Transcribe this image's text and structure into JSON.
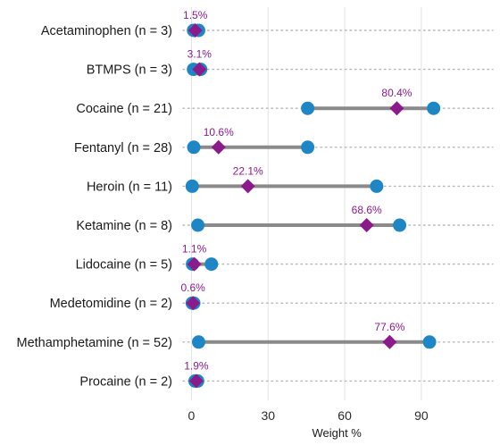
{
  "chart_data": {
    "type": "dumbbell",
    "xlabel": "Weight %",
    "xlim": [
      -4,
      118
    ],
    "xticks": [
      0,
      30,
      60,
      90
    ],
    "grid": true,
    "colors": {
      "range_point": "#1f86c6",
      "median_marker": "#8b1a8b",
      "range_line": "#8a8a8a",
      "gridline": "#e3e3e3",
      "row_dots": "#b5b5b5"
    },
    "rows": [
      {
        "label": "Acetaminophen (n = 3)",
        "min": 0.8,
        "max": 2.8,
        "median": 1.5,
        "median_label": "1.5%"
      },
      {
        "label": "BTMPS (n = 3)",
        "min": 0.8,
        "max": 3.6,
        "median": 3.1,
        "median_label": "3.1%"
      },
      {
        "label": "Cocaine (n = 21)",
        "min": 45.5,
        "max": 94.8,
        "median": 80.4,
        "median_label": "80.4%"
      },
      {
        "label": "Fentanyl (n = 28)",
        "min": 0.9,
        "max": 45.5,
        "median": 10.6,
        "median_label": "10.6%"
      },
      {
        "label": "Heroin (n = 11)",
        "min": 0.3,
        "max": 72.5,
        "median": 22.1,
        "median_label": "22.1%"
      },
      {
        "label": "Ketamine (n = 8)",
        "min": 2.5,
        "max": 81.5,
        "median": 68.6,
        "median_label": "68.6%"
      },
      {
        "label": "Lidocaine (n = 5)",
        "min": 0.4,
        "max": 7.8,
        "median": 1.1,
        "median_label": "1.1%"
      },
      {
        "label": "Medetomidine (n = 2)",
        "min": 0.3,
        "max": 0.9,
        "median": 0.6,
        "median_label": "0.6%"
      },
      {
        "label": "Methamphetamine (n = 52)",
        "min": 2.8,
        "max": 93.2,
        "median": 77.6,
        "median_label": "77.6%"
      },
      {
        "label": "Procaine (n = 2)",
        "min": 1.4,
        "max": 2.4,
        "median": 1.9,
        "median_label": "1.9%"
      }
    ]
  }
}
